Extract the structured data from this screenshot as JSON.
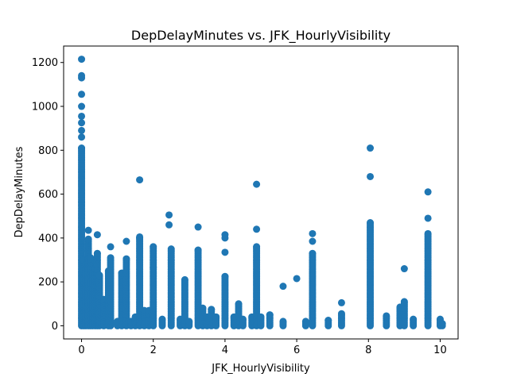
{
  "chart_data": {
    "type": "scatter",
    "title": "DepDelayMinutes vs. JFK_HourlyVisibility",
    "xlabel": "JFK_HourlyVisibility",
    "ylabel": "DepDelayMinutes",
    "xlim": [
      -0.5,
      10.5
    ],
    "ylim": [
      -60,
      1275
    ],
    "xticks": [
      0,
      2,
      4,
      6,
      8,
      10
    ],
    "yticks": [
      0,
      200,
      400,
      600,
      800,
      1000,
      1200
    ],
    "grid": false,
    "legend": "none",
    "color": "#1f77b4",
    "columns": [
      {
        "x": 0.0,
        "ymax": 810
      },
      {
        "x": 0.06,
        "ymax": 300
      },
      {
        "x": 0.12,
        "ymax": 280
      },
      {
        "x": 0.19,
        "ymax": 395
      },
      {
        "x": 0.25,
        "ymax": 310
      },
      {
        "x": 0.31,
        "ymax": 240
      },
      {
        "x": 0.38,
        "ymax": 260
      },
      {
        "x": 0.44,
        "ymax": 330
      },
      {
        "x": 0.5,
        "ymax": 230
      },
      {
        "x": 0.62,
        "ymax": 120
      },
      {
        "x": 0.75,
        "ymax": 250
      },
      {
        "x": 0.81,
        "ymax": 310
      },
      {
        "x": 1.0,
        "ymax": 20
      },
      {
        "x": 1.12,
        "ymax": 240
      },
      {
        "x": 1.25,
        "ymax": 305
      },
      {
        "x": 1.38,
        "ymax": 20
      },
      {
        "x": 1.5,
        "ymax": 40
      },
      {
        "x": 1.62,
        "ymax": 400
      },
      {
        "x": 1.75,
        "ymax": 70
      },
      {
        "x": 1.88,
        "ymax": 70
      },
      {
        "x": 2.0,
        "ymax": 360
      },
      {
        "x": 2.25,
        "ymax": 30
      },
      {
        "x": 2.5,
        "ymax": 350
      },
      {
        "x": 2.75,
        "ymax": 30
      },
      {
        "x": 2.88,
        "ymax": 210
      },
      {
        "x": 3.0,
        "ymax": 20
      },
      {
        "x": 3.25,
        "ymax": 345
      },
      {
        "x": 3.38,
        "ymax": 80
      },
      {
        "x": 3.5,
        "ymax": 40
      },
      {
        "x": 3.62,
        "ymax": 75
      },
      {
        "x": 3.75,
        "ymax": 40
      },
      {
        "x": 4.0,
        "ymax": 225
      },
      {
        "x": 4.25,
        "ymax": 40
      },
      {
        "x": 4.38,
        "ymax": 100
      },
      {
        "x": 4.5,
        "ymax": 30
      },
      {
        "x": 4.75,
        "ymax": 40
      },
      {
        "x": 4.88,
        "ymax": 360
      },
      {
        "x": 5.0,
        "ymax": 40
      },
      {
        "x": 5.25,
        "ymax": 50
      },
      {
        "x": 5.62,
        "ymax": 20
      },
      {
        "x": 6.25,
        "ymax": 20
      },
      {
        "x": 6.44,
        "ymax": 330
      },
      {
        "x": 6.88,
        "ymax": 25
      },
      {
        "x": 7.25,
        "ymax": 55
      },
      {
        "x": 8.05,
        "ymax": 470
      },
      {
        "x": 8.5,
        "ymax": 45
      },
      {
        "x": 8.88,
        "ymax": 85
      },
      {
        "x": 9.0,
        "ymax": 110
      },
      {
        "x": 9.25,
        "ymax": 30
      },
      {
        "x": 9.66,
        "ymax": 420
      },
      {
        "x": 10.0,
        "ymax": 30
      },
      {
        "x": 10.06,
        "ymax": 10
      }
    ],
    "outliers": [
      {
        "x": 0.0,
        "y": 1215
      },
      {
        "x": 0.0,
        "y": 1140
      },
      {
        "x": 0.0,
        "y": 1130
      },
      {
        "x": 0.0,
        "y": 1055
      },
      {
        "x": 0.0,
        "y": 1000
      },
      {
        "x": 0.0,
        "y": 955
      },
      {
        "x": 0.0,
        "y": 925
      },
      {
        "x": 0.0,
        "y": 890
      },
      {
        "x": 0.0,
        "y": 860
      },
      {
        "x": 0.19,
        "y": 435
      },
      {
        "x": 0.44,
        "y": 415
      },
      {
        "x": 0.81,
        "y": 360
      },
      {
        "x": 1.25,
        "y": 385
      },
      {
        "x": 1.62,
        "y": 665
      },
      {
        "x": 1.62,
        "y": 405
      },
      {
        "x": 2.0,
        "y": 265
      },
      {
        "x": 2.44,
        "y": 505
      },
      {
        "x": 2.44,
        "y": 460
      },
      {
        "x": 3.25,
        "y": 450
      },
      {
        "x": 4.0,
        "y": 415
      },
      {
        "x": 4.0,
        "y": 400
      },
      {
        "x": 4.0,
        "y": 335
      },
      {
        "x": 4.88,
        "y": 645
      },
      {
        "x": 4.88,
        "y": 440
      },
      {
        "x": 5.62,
        "y": 180
      },
      {
        "x": 6.0,
        "y": 215
      },
      {
        "x": 6.44,
        "y": 420
      },
      {
        "x": 6.44,
        "y": 385
      },
      {
        "x": 7.25,
        "y": 105
      },
      {
        "x": 8.05,
        "y": 810
      },
      {
        "x": 8.05,
        "y": 680
      },
      {
        "x": 9.0,
        "y": 260
      },
      {
        "x": 9.66,
        "y": 610
      },
      {
        "x": 9.66,
        "y": 490
      }
    ]
  }
}
